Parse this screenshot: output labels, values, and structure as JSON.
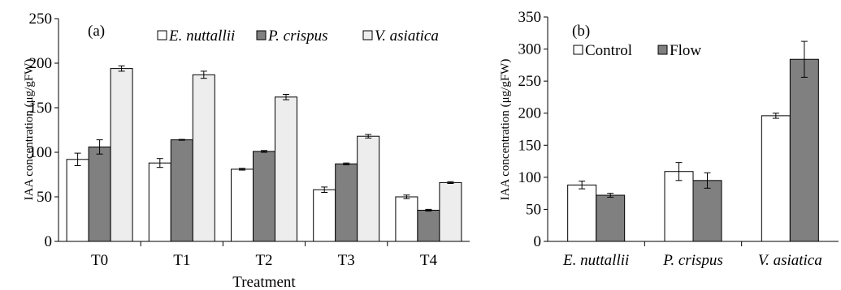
{
  "chart_data": [
    {
      "type": "bar",
      "panel_label": "(a)",
      "categories": [
        "T0",
        "T1",
        "T2",
        "T3",
        "T4"
      ],
      "series": [
        {
          "name": "E. nuttallii",
          "values": [
            92,
            88,
            81,
            58,
            50
          ],
          "errors": [
            7,
            5,
            1,
            3,
            2
          ],
          "color": "#ffffff"
        },
        {
          "name": "P. crispus",
          "values": [
            106,
            114,
            101,
            87,
            35
          ],
          "errors": [
            8,
            0.5,
            1,
            1,
            1
          ],
          "color": "#808080"
        },
        {
          "name": "V. asiatica",
          "values": [
            194,
            187,
            162,
            118,
            66
          ],
          "errors": [
            3,
            4,
            3,
            2,
            1
          ],
          "color": "#ededed"
        }
      ],
      "xlabel": "Treatment",
      "ylabel": "IAA concentration (μg/gFW)",
      "ylim": [
        0,
        250
      ],
      "yticks": [
        0,
        50,
        100,
        150,
        200,
        250
      ],
      "legend_placement": "top",
      "grid": false
    },
    {
      "type": "bar",
      "panel_label": "(b)",
      "categories": [
        "E. nuttallii",
        "P. crispus",
        "V. asiatica"
      ],
      "series": [
        {
          "name": "Control",
          "values": [
            88,
            109,
            196
          ],
          "errors": [
            6,
            14,
            4
          ],
          "color": "#ffffff"
        },
        {
          "name": "Flow",
          "values": [
            72,
            95,
            284
          ],
          "errors": [
            3,
            12,
            28
          ],
          "color": "#808080"
        }
      ],
      "xlabel": "",
      "ylabel": "IAA concentration (μg/gFW)",
      "ylim": [
        0,
        350
      ],
      "yticks": [
        0,
        50,
        100,
        150,
        200,
        250,
        300,
        350
      ],
      "legend_placement": "top-left",
      "grid": false
    }
  ]
}
